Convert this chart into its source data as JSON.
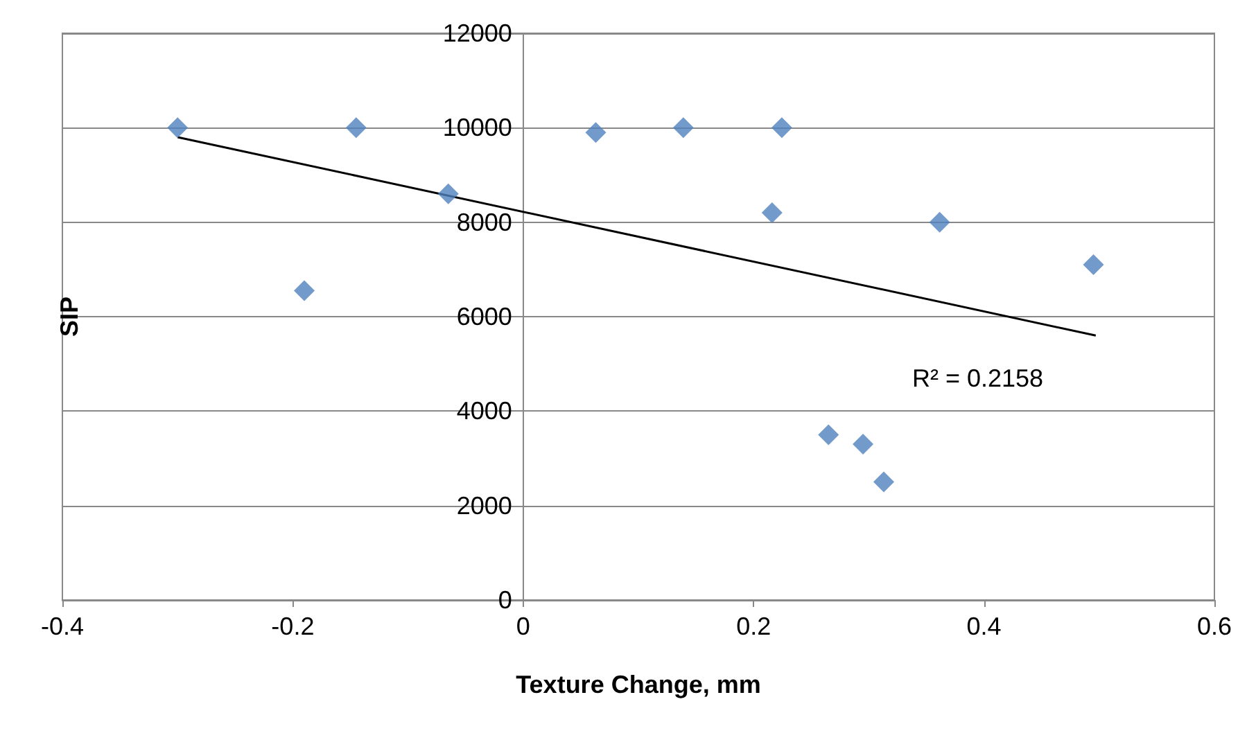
{
  "chart_data": {
    "type": "scatter",
    "xlabel": "Texture Change, mm",
    "ylabel": "SIP",
    "xlim": [
      -0.4,
      0.6
    ],
    "xticks": [
      -0.4,
      -0.2,
      0,
      0.2,
      0.4,
      0.6
    ],
    "ylim": [
      0,
      12000
    ],
    "yticks": [
      0,
      2000,
      4000,
      6000,
      8000,
      10000,
      12000
    ],
    "grid": "y",
    "marker": "diamond",
    "series": [
      {
        "color": "#4f81bd",
        "x": [
          -0.3,
          -0.19,
          -0.145,
          -0.065,
          0.063,
          0.139,
          0.2245,
          0.216,
          0.3615,
          0.495,
          0.265,
          0.295,
          0.313
        ],
        "values": [
          10000,
          6550,
          10000,
          8600,
          9900,
          10000,
          10000,
          8200,
          8000,
          7100,
          3500,
          3300,
          2500
        ]
      },
      {
        "type": "line",
        "color": "#000000",
        "marker": "none",
        "x": [
          -0.3,
          0.497
        ],
        "values": [
          9800,
          5600
        ]
      }
    ],
    "annotations": [
      "R² = 0.2158"
    ]
  }
}
